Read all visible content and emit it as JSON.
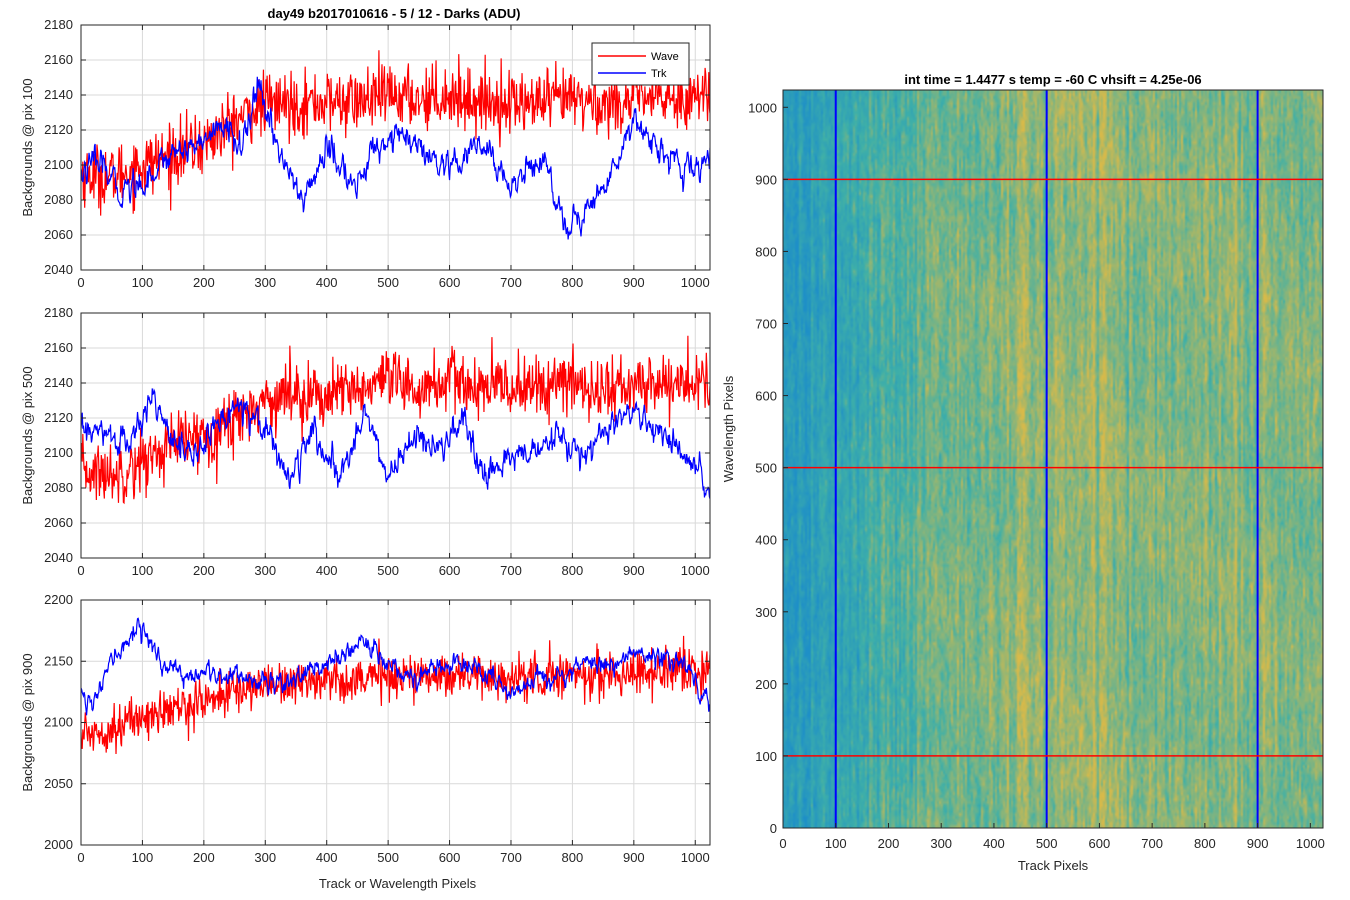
{
  "figure": {
    "title": "day49 b2017010616 - 5 / 12 - Darks (ADU)",
    "image_title": "int time = 1.4477 s   temp = -60 C   vhsift = 4.25e-06"
  },
  "colors": {
    "wave": "#ff0000",
    "trk": "#0000ff",
    "grid": "#d9d9d9",
    "axes": "#262626",
    "image_low": "#1e8fc8",
    "image_mid": "#3fb0a8",
    "image_high": "#d8ba4a"
  },
  "chart_data": [
    {
      "type": "line",
      "ylabel": "Backgrounds @ pix 100",
      "xlabel": "",
      "xlim": [
        0,
        1024
      ],
      "ylim": [
        2040,
        2180
      ],
      "xticks": [
        0,
        100,
        200,
        300,
        400,
        500,
        600,
        700,
        800,
        900,
        1000
      ],
      "yticks": [
        2040,
        2060,
        2080,
        2100,
        2120,
        2140,
        2160,
        2180
      ],
      "grid": true,
      "legend": {
        "position": "top-right",
        "entries": [
          "Wave",
          "Trk"
        ]
      },
      "series": [
        {
          "name": "Wave",
          "color": "#ff0000",
          "noise": 12,
          "trend": {
            "x": [
              0,
              50,
              100,
              150,
              200,
              250,
              300,
              350,
              400,
              450,
              500,
              550,
              600,
              650,
              700,
              750,
              800,
              850,
              900,
              950,
              1024
            ],
            "y": [
              2095,
              2093,
              2100,
              2106,
              2112,
              2125,
              2135,
              2135,
              2136,
              2136,
              2140,
              2138,
              2140,
              2136,
              2136,
              2135,
              2138,
              2134,
              2138,
              2138,
              2140
            ]
          }
        },
        {
          "name": "Trk",
          "color": "#0000ff",
          "noise": 4,
          "trend": {
            "x": [
              0,
              30,
              60,
              100,
              150,
              200,
              230,
              260,
              290,
              320,
              360,
              400,
              450,
              480,
              520,
              560,
              600,
              650,
              700,
              750,
              790,
              830,
              870,
              900,
              940,
              980,
              1024
            ],
            "y": [
              2095,
              2102,
              2085,
              2090,
              2108,
              2114,
              2122,
              2112,
              2142,
              2112,
              2078,
              2110,
              2086,
              2112,
              2118,
              2105,
              2095,
              2112,
              2088,
              2105,
              2065,
              2075,
              2100,
              2128,
              2110,
              2095,
              2103
            ]
          }
        }
      ]
    },
    {
      "type": "line",
      "ylabel": "Backgrounds @ pix 500",
      "xlabel": "",
      "xlim": [
        0,
        1024
      ],
      "ylim": [
        2040,
        2180
      ],
      "xticks": [
        0,
        100,
        200,
        300,
        400,
        500,
        600,
        700,
        800,
        900,
        1000
      ],
      "yticks": [
        2040,
        2060,
        2080,
        2100,
        2120,
        2140,
        2160,
        2180
      ],
      "grid": true,
      "series": [
        {
          "name": "Wave",
          "color": "#ff0000",
          "noise": 12,
          "trend": {
            "x": [
              0,
              50,
              100,
              150,
              200,
              250,
              300,
              350,
              400,
              450,
              500,
              550,
              600,
              650,
              700,
              750,
              800,
              850,
              900,
              950,
              1024
            ],
            "y": [
              2090,
              2088,
              2095,
              2105,
              2110,
              2120,
              2130,
              2135,
              2132,
              2136,
              2140,
              2136,
              2142,
              2136,
              2138,
              2138,
              2140,
              2136,
              2138,
              2140,
              2140
            ]
          }
        },
        {
          "name": "Trk",
          "color": "#0000ff",
          "noise": 4,
          "trend": {
            "x": [
              0,
              40,
              80,
              120,
              150,
              180,
              220,
              260,
              300,
              340,
              380,
              420,
              460,
              500,
              540,
              580,
              620,
              660,
              700,
              740,
              780,
              820,
              860,
              900,
              950,
              1000,
              1024
            ],
            "y": [
              2113,
              2110,
              2105,
              2133,
              2110,
              2096,
              2115,
              2130,
              2115,
              2085,
              2112,
              2082,
              2126,
              2085,
              2110,
              2100,
              2118,
              2082,
              2100,
              2100,
              2108,
              2098,
              2115,
              2122,
              2110,
              2090,
              2075
            ]
          }
        }
      ]
    },
    {
      "type": "line",
      "ylabel": "Backgrounds @ pix 900",
      "xlabel": "Track or Wavelength Pixels",
      "xlim": [
        0,
        1024
      ],
      "ylim": [
        2000,
        2200
      ],
      "xticks": [
        0,
        100,
        200,
        300,
        400,
        500,
        600,
        700,
        800,
        900,
        1000
      ],
      "yticks": [
        2000,
        2050,
        2100,
        2150,
        2200
      ],
      "grid": true,
      "series": [
        {
          "name": "Wave",
          "color": "#ff0000",
          "noise": 12,
          "trend": {
            "x": [
              0,
              50,
              100,
              150,
              200,
              250,
              300,
              350,
              400,
              450,
              500,
              550,
              600,
              650,
              700,
              750,
              800,
              850,
              900,
              950,
              1024
            ],
            "y": [
              2090,
              2095,
              2105,
              2110,
              2118,
              2125,
              2132,
              2133,
              2135,
              2136,
              2138,
              2138,
              2140,
              2138,
              2135,
              2138,
              2140,
              2138,
              2142,
              2142,
              2140
            ]
          }
        },
        {
          "name": "Trk",
          "color": "#0000ff",
          "noise": 4,
          "trend": {
            "x": [
              0,
              20,
              50,
              95,
              140,
              200,
              260,
              300,
              340,
              380,
              420,
              460,
              500,
              540,
              580,
              620,
              660,
              700,
              740,
              780,
              820,
              860,
              900,
              940,
              980,
              1024
            ],
            "y": [
              2130,
              2112,
              2150,
              2180,
              2142,
              2138,
              2140,
              2132,
              2135,
              2145,
              2150,
              2168,
              2150,
              2135,
              2145,
              2148,
              2140,
              2120,
              2140,
              2138,
              2150,
              2146,
              2158,
              2152,
              2150,
              2118
            ]
          }
        }
      ]
    },
    {
      "type": "heatmap",
      "title": "int time = 1.4477 s   temp = -60 C   vhsift = 4.25e-06",
      "xlabel": "Track Pixels",
      "ylabel": "Wavelength Pixels",
      "xlim": [
        0,
        1024
      ],
      "ylim": [
        0,
        1024
      ],
      "xticks": [
        0,
        100,
        200,
        300,
        400,
        500,
        600,
        700,
        800,
        900,
        1000
      ],
      "yticks": [
        0,
        100,
        200,
        300,
        400,
        500,
        600,
        700,
        800,
        900,
        1000
      ],
      "value_profile": {
        "x": [
          0,
          50,
          100,
          150,
          200,
          250,
          300,
          350,
          400,
          450,
          500,
          550,
          600,
          650,
          700,
          750,
          800,
          850,
          900,
          950,
          1024
        ],
        "level": [
          0.12,
          0.18,
          0.3,
          0.4,
          0.48,
          0.58,
          0.68,
          0.7,
          0.72,
          0.72,
          0.74,
          0.76,
          0.8,
          0.74,
          0.72,
          0.74,
          0.74,
          0.7,
          0.7,
          0.72,
          0.74
        ]
      },
      "marker_lines": {
        "vertical": {
          "color": "#0000ff",
          "x": [
            100,
            500,
            900
          ]
        },
        "horizontal": {
          "color": "#ff0000",
          "y": [
            100,
            500,
            900
          ]
        }
      }
    }
  ]
}
